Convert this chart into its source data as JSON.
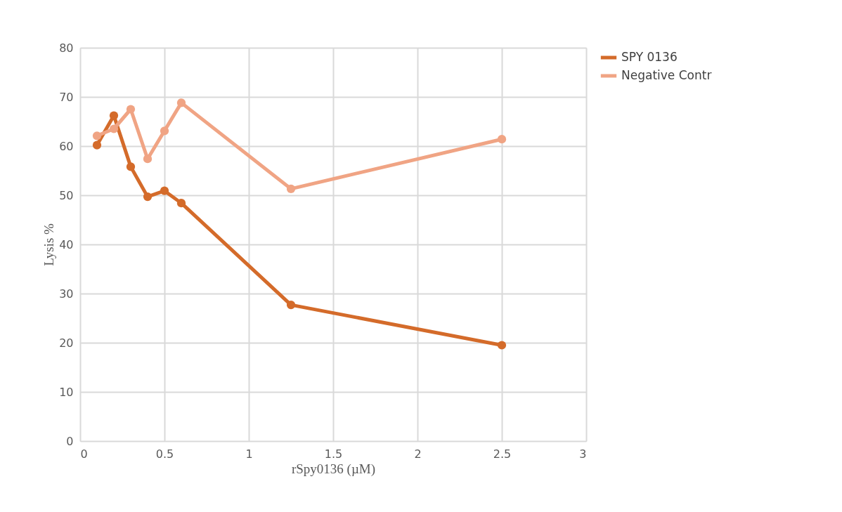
{
  "chart_data": {
    "type": "line",
    "xlabel": "rSpy0136 (µM)",
    "ylabel": "Lysis %",
    "x": [
      0.1,
      0.2,
      0.3,
      0.4,
      0.5,
      0.6,
      1.25,
      2.5
    ],
    "series": [
      {
        "name": "SPY 0136",
        "color": "#d46b2a",
        "values": [
          60.2,
          66.2,
          55.8,
          49.7,
          50.9,
          48.4,
          27.7,
          19.5
        ]
      },
      {
        "name": "Negative Contr",
        "color": "#f0a484",
        "values": [
          62.1,
          63.5,
          67.5,
          57.4,
          63.1,
          68.8,
          51.3,
          61.4
        ]
      }
    ],
    "xlim": [
      0,
      3
    ],
    "xticks": [
      0,
      0.5,
      1,
      1.5,
      2,
      2.5,
      3
    ],
    "ylim": [
      0,
      80
    ],
    "yticks": [
      0,
      10,
      20,
      30,
      40,
      50,
      60,
      70,
      80
    ],
    "grid": true,
    "legend": "right",
    "marker": "circle",
    "line_style": "solid"
  }
}
